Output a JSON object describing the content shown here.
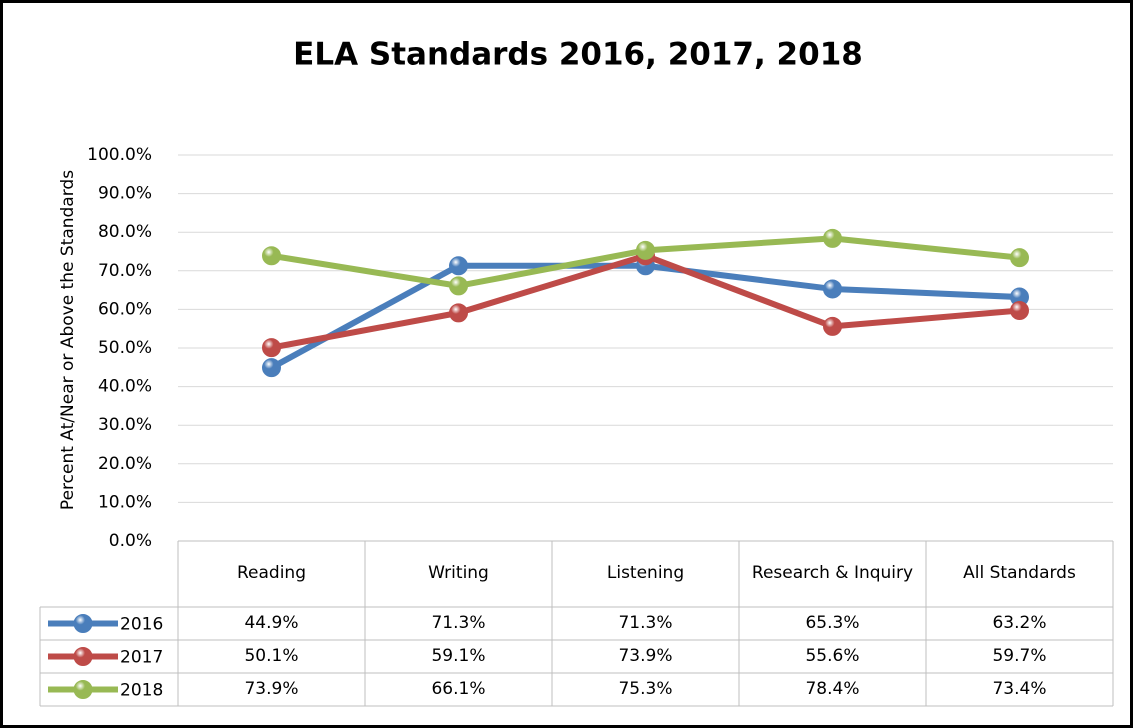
{
  "chart_data": {
    "type": "line",
    "title": "ELA Standards 2016, 2017, 2018",
    "y_label": "Percent At/Near or Above the Standards",
    "categories": [
      "Reading",
      "Writing",
      "Listening",
      "Research & Inquiry",
      "All Standards"
    ],
    "series": [
      {
        "name": "2016",
        "color": "#4a7ebb",
        "values": [
          44.9,
          71.3,
          71.3,
          65.3,
          63.2
        ],
        "value_labels": [
          "44.9%",
          "71.3%",
          "71.3%",
          "65.3%",
          "63.2%"
        ]
      },
      {
        "name": "2017",
        "color": "#be4b48",
        "values": [
          50.1,
          59.1,
          73.9,
          55.6,
          59.7
        ],
        "value_labels": [
          "50.1%",
          "59.1%",
          "73.9%",
          "55.6%",
          "59.7%"
        ]
      },
      {
        "name": "2018",
        "color": "#98b954",
        "values": [
          73.9,
          66.1,
          75.3,
          78.4,
          73.4
        ],
        "value_labels": [
          "73.9%",
          "66.1%",
          "75.3%",
          "78.4%",
          "73.4%"
        ]
      }
    ],
    "ylim": [
      0,
      100
    ],
    "yticks": [
      {
        "value": 0,
        "label": "0.0%"
      },
      {
        "value": 10,
        "label": "10.0%"
      },
      {
        "value": 20,
        "label": "20.0%"
      },
      {
        "value": 30,
        "label": "30.0%"
      },
      {
        "value": 40,
        "label": "40.0%"
      },
      {
        "value": 50,
        "label": "50.0%"
      },
      {
        "value": 60,
        "label": "60.0%"
      },
      {
        "value": 70,
        "label": "70.0%"
      },
      {
        "value": 80,
        "label": "80.0%"
      },
      {
        "value": 90,
        "label": "90.0%"
      },
      {
        "value": 100,
        "label": "100.0%"
      }
    ],
    "grid": true
  }
}
